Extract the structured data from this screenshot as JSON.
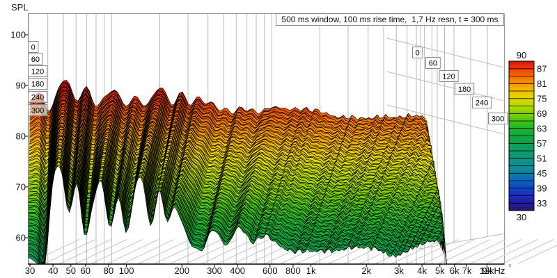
{
  "window": {
    "spl_axis_label": "SPL"
  },
  "title_box": {
    "text": "500 ms window, 100 ms rise time,  1,7 Hz resn, t = 300 ms"
  },
  "axes": {
    "y_tick_labels": [
      "100",
      "90",
      "80",
      "70",
      "60"
    ],
    "y_tick_values": [
      100,
      90,
      80,
      70,
      60
    ],
    "x_tick_labels": [
      "30",
      "40",
      "50",
      "60",
      "80",
      "100",
      "200",
      "300",
      "400",
      "600",
      "800",
      "1k",
      "2k",
      "3k",
      "4k",
      "5k",
      "6k",
      "7k",
      "9k",
      "12kHz"
    ],
    "x_tick_hz": [
      30,
      40,
      50,
      60,
      80,
      100,
      200,
      300,
      400,
      600,
      800,
      1000,
      2000,
      3000,
      4000,
      5000,
      6000,
      7000,
      9000,
      12000
    ]
  },
  "time_axis": {
    "labels_ms": [
      "0",
      "60",
      "120",
      "180",
      "240",
      "300"
    ]
  },
  "legend": {
    "top_label": "90",
    "bottom_label": "30",
    "tick_labels": [
      "87",
      "81",
      "75",
      "69",
      "63",
      "57",
      "51",
      "45",
      "39",
      "33"
    ]
  },
  "chart_data": {
    "type": "waterfall",
    "title": "500 ms window, 100 ms rise time,  1,7 Hz resn, t = 300 ms",
    "ylabel": "SPL",
    "ylim": [
      60,
      100
    ],
    "xlim_hz": [
      30,
      12000
    ],
    "legend_range_db": [
      30,
      90
    ],
    "time_span_ms": [
      0,
      300
    ],
    "freq_hz": [
      30,
      34,
      38,
      43,
      48,
      54,
      61,
      68,
      77,
      86,
      97,
      110,
      123,
      139,
      156,
      176,
      198,
      222,
      250,
      300,
      360,
      430,
      520,
      620,
      750,
      900,
      1100,
      1350,
      1700,
      2200,
      3000,
      4200,
      6000,
      8500,
      12000
    ],
    "spl_db_t0": [
      86,
      88,
      84,
      90,
      91,
      87.5,
      89.5,
      86.5,
      88.5,
      89.5,
      86.5,
      88,
      86,
      88,
      89,
      86,
      88,
      86,
      87,
      86,
      85,
      86,
      85,
      86,
      85,
      85,
      84.5,
      84,
      84,
      84,
      83.5,
      83.5,
      83,
      82.5,
      82
    ],
    "spl_db_t300": [
      60,
      60,
      58,
      77,
      79,
      70.5,
      75.5,
      66.5,
      72.5,
      76.5,
      67.5,
      73,
      66,
      74,
      76,
      67,
      74,
      68,
      71,
      65,
      63,
      67,
      64,
      67,
      64,
      65,
      63.5,
      62.5,
      63,
      62.5,
      62.5,
      63,
      62,
      63.5,
      64
    ],
    "time_interpolation": "linear",
    "hf_cutoff_hz_t0": 4200,
    "hf_cutoff_hz_t300": 12000
  },
  "style": {
    "colormap_db_hex": [
      [
        90,
        "#d81400"
      ],
      [
        87,
        "#ee3c00"
      ],
      [
        84,
        "#f56a00"
      ],
      [
        81,
        "#f99400"
      ],
      [
        78,
        "#f3c000"
      ],
      [
        75,
        "#dfd800"
      ],
      [
        72,
        "#b4da00"
      ],
      [
        69,
        "#84d000"
      ],
      [
        66,
        "#46c41a"
      ],
      [
        63,
        "#20b42c"
      ],
      [
        60,
        "#12a73c"
      ],
      [
        57,
        "#0fa050"
      ],
      [
        54,
        "#0f9b66"
      ],
      [
        51,
        "#10957c"
      ],
      [
        48,
        "#0f8f92"
      ],
      [
        45,
        "#0d82ac"
      ],
      [
        42,
        "#0c64bc"
      ],
      [
        39,
        "#0d46c4"
      ],
      [
        36,
        "#1c2cc0"
      ],
      [
        33,
        "#241a9e"
      ],
      [
        30,
        "#2a1670"
      ]
    ],
    "grid_color": "#b9b9b9",
    "floor_grid_color": "#c4c4c4",
    "axis_color": "#000000",
    "border_color": "#9a9a9a"
  }
}
